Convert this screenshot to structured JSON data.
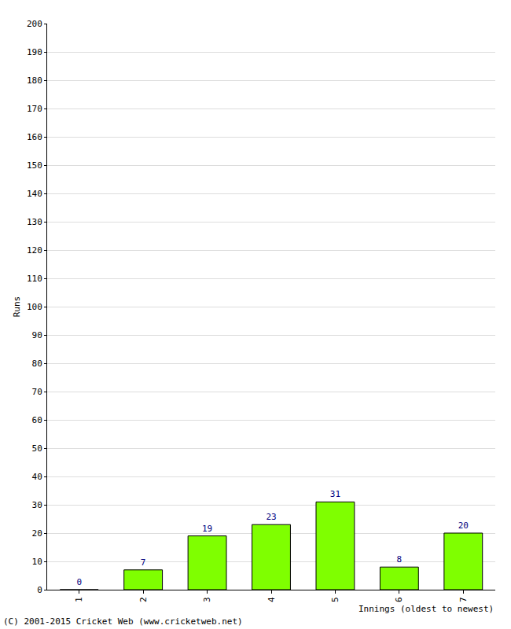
{
  "chart_data": {
    "type": "bar",
    "x_label": "Innings (oldest to newest)",
    "y_label": "Runs",
    "annotations": [
      "(C) 2001-2015 Cricket Web (www.cricketweb.net)"
    ],
    "categories": [
      "1",
      "2",
      "3",
      "4",
      "5",
      "6",
      "7"
    ],
    "values": [
      0,
      7,
      19,
      23,
      31,
      8,
      20
    ],
    "color": "#7fff00",
    "ylim": [
      0,
      200
    ],
    "yticks": [
      0,
      10,
      20,
      30,
      40,
      50,
      60,
      70,
      80,
      90,
      100,
      110,
      120,
      130,
      140,
      150,
      160,
      170,
      180,
      190,
      200
    ],
    "grid": true,
    "data_labels": true
  }
}
